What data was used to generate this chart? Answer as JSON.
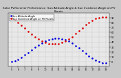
{
  "title": "Solar PV/Inverter Performance  Sun Altitude Angle & Sun Incidence Angle on PV Panels",
  "blue_label": "Sun Altitude Angle",
  "red_label": "Sun Incidence Angle on PV Panels",
  "plot_bg": "#e8e8e8",
  "fig_bg": "#c8c8c8",
  "x_times": [
    5.0,
    5.5,
    6.0,
    6.5,
    7.0,
    7.5,
    8.0,
    8.5,
    9.0,
    9.5,
    10.0,
    10.5,
    11.0,
    11.5,
    12.0,
    12.5,
    13.0,
    13.5,
    14.0,
    14.5,
    15.0,
    15.5,
    16.0,
    16.5,
    17.0,
    17.5,
    18.0,
    18.5,
    19.0
  ],
  "altitude": [
    0,
    2,
    5,
    9,
    14,
    19,
    24,
    29,
    34,
    38,
    42,
    45,
    47,
    48,
    48,
    47,
    45,
    42,
    38,
    33,
    28,
    23,
    17,
    12,
    7,
    3,
    0,
    -2,
    -3
  ],
  "incidence": [
    90,
    85,
    80,
    74,
    68,
    62,
    56,
    51,
    46,
    42,
    39,
    37,
    36,
    36,
    37,
    39,
    42,
    46,
    51,
    57,
    63,
    69,
    75,
    80,
    84,
    88,
    90,
    91,
    91
  ],
  "xlim": [
    4.5,
    19.5
  ],
  "ylim": [
    -10,
    100
  ],
  "yticks": [
    0,
    10,
    20,
    30,
    40,
    50,
    60,
    70,
    80,
    90
  ],
  "xticks": [
    5,
    6,
    7,
    8,
    9,
    10,
    11,
    12,
    13,
    14,
    15,
    16,
    17,
    18,
    19
  ],
  "title_fontsize": 3.0,
  "tick_fontsize": 2.5,
  "legend_fontsize": 2.5,
  "blue_color": "#0000dd",
  "red_color": "#dd0000",
  "marker_size": 0.9
}
